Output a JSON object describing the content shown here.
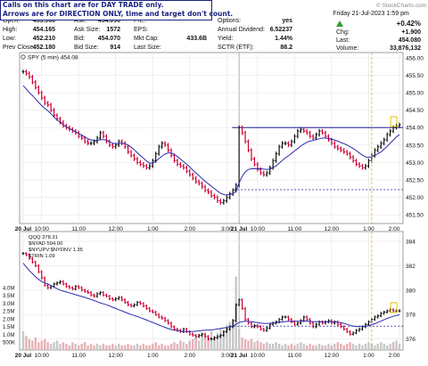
{
  "disclaimer": {
    "line1": "Calls on this chart are for DAY TRADE only.",
    "line2": "Arrows are for DIRECTION ONLY, time and target don't count."
  },
  "watermark": "© StockCharts.com",
  "datetime": "Friday  21-Jul-2023  1:59 pm",
  "quote": [
    {
      "label": "Open:",
      "value": "453.960"
    },
    {
      "label": "Ask:",
      "value": "454.090"
    },
    {
      "label": "P/E:",
      "value": ""
    },
    {
      "label": "Options:",
      "value": "yes"
    },
    {
      "label": "High:",
      "value": "454.165"
    },
    {
      "label": "Ask Size:",
      "value": "1572"
    },
    {
      "label": "EPS:",
      "value": ""
    },
    {
      "label": "Annual Dividend:",
      "value": "6.52237"
    },
    {
      "label": "Low:",
      "value": "452.210"
    },
    {
      "label": "Bid:",
      "value": "454.070"
    },
    {
      "label": "Mkt Cap:",
      "value": "433.6B"
    },
    {
      "label": "Yield:",
      "value": "1.44%"
    },
    {
      "label": "Prev Close:",
      "value": "452.180"
    },
    {
      "label": "Bid Size:",
      "value": "914"
    },
    {
      "label": "Last Size:",
      "value": ""
    },
    {
      "label": "SCTR (ETF):",
      "value": "88.2"
    }
  ],
  "right_stats": {
    "change_pct": "+0.42%",
    "chg_label": "Chg:",
    "chg_value": "+1.900",
    "last_label": "Last:",
    "last_value": "454.080",
    "volume_label": "Volume:",
    "volume_value": "33,876,132"
  },
  "colors": {
    "up": "#111111",
    "down": "#cc0033",
    "ma": "#2b2bb0",
    "volume": "#cccccc",
    "level_line": "#1c1c9c",
    "marker": "#f5a623",
    "arrow": "#2e9e2e",
    "note_text": "#1a237e"
  },
  "chart_data": [
    {
      "type": "line",
      "legend": "SPY (5 min) 454.08",
      "y_ticks": [
        "456.00",
        "455.50",
        "455.00",
        "454.50",
        "454.00",
        "453.50",
        "453.00",
        "452.50",
        "452.00",
        "451.50"
      ],
      "ylim": [
        451.25,
        456.15
      ],
      "x_ticks": [
        "20 Jul",
        "10:00",
        "11:00",
        "12:00",
        "1:00",
        "2:00",
        "3:00",
        "21 Jul",
        "10:00",
        "11:00",
        "12:00",
        "1:00",
        "2:00"
      ],
      "price": [
        455.6,
        455.55,
        455.45,
        455.3,
        455.15,
        455.0,
        454.85,
        454.7,
        454.65,
        454.5,
        454.35,
        454.25,
        454.15,
        454.05,
        454.0,
        453.95,
        453.9,
        453.85,
        453.75,
        453.7,
        453.6,
        453.55,
        453.55,
        453.6,
        453.7,
        453.85,
        453.75,
        453.6,
        453.5,
        453.45,
        453.5,
        453.6,
        453.55,
        453.45,
        453.3,
        453.2,
        453.1,
        453.0,
        452.95,
        452.9,
        452.85,
        452.9,
        453.05,
        453.25,
        453.45,
        453.55,
        453.5,
        453.35,
        453.2,
        453.05,
        452.95,
        452.9,
        452.85,
        452.75,
        452.65,
        452.55,
        452.45,
        452.4,
        452.3,
        452.2,
        452.15,
        452.05,
        452.0,
        451.9,
        451.85,
        451.9,
        452.0,
        452.1,
        452.2,
        452.35,
        454.0,
        453.85,
        453.6,
        453.35,
        453.1,
        452.95,
        452.8,
        452.7,
        452.65,
        452.7,
        452.85,
        453.05,
        453.25,
        453.45,
        453.55,
        453.55,
        453.5,
        453.6,
        453.75,
        453.9,
        453.95,
        453.9,
        453.85,
        453.75,
        453.7,
        453.8,
        453.9,
        453.85,
        453.75,
        453.65,
        453.55,
        453.45,
        453.4,
        453.35,
        453.3,
        453.25,
        453.15,
        453.05,
        452.95,
        452.9,
        452.85,
        452.9,
        453.05,
        453.2,
        453.35,
        453.45,
        453.55,
        453.65,
        453.8,
        453.9,
        454.0,
        454.05,
        454.08
      ],
      "ma": [
        455.2,
        455.1,
        455.0,
        454.92,
        454.82,
        454.72,
        454.63,
        454.55,
        454.48,
        454.4,
        454.3,
        454.22,
        454.15,
        454.08,
        454.02,
        453.97,
        453.93,
        453.88,
        453.83,
        453.78,
        453.73,
        453.68,
        453.65,
        453.63,
        453.63,
        453.65,
        453.66,
        453.64,
        453.6,
        453.55,
        453.54,
        453.55,
        453.55,
        453.54,
        453.5,
        453.44,
        453.36,
        453.28,
        453.2,
        453.12,
        453.04,
        452.98,
        452.98,
        453.03,
        453.11,
        453.18,
        453.24,
        453.27,
        453.27,
        453.23,
        453.17,
        453.1,
        453.02,
        452.95,
        452.87,
        452.78,
        452.7,
        452.62,
        452.54,
        452.46,
        452.39,
        452.32,
        452.25,
        452.18,
        452.12,
        452.08,
        452.07,
        452.08,
        452.11,
        452.17,
        452.41,
        452.6,
        452.73,
        452.8,
        452.82,
        452.82,
        452.82,
        452.82,
        452.81,
        452.8,
        452.81,
        452.85,
        452.9,
        452.98,
        453.06,
        453.13,
        453.19,
        453.26,
        453.33,
        453.4,
        453.47,
        453.53,
        453.58,
        453.61,
        453.63,
        453.66,
        453.68,
        453.7,
        453.7,
        453.69,
        453.67,
        453.64,
        453.61,
        453.57,
        453.54,
        453.5,
        453.45,
        453.4,
        453.34,
        453.27,
        453.21,
        453.16,
        453.15,
        453.16,
        453.2,
        453.25,
        453.3,
        453.38,
        453.46,
        453.55,
        453.64,
        453.73,
        453.8
      ],
      "level_solid": 454.0,
      "level_dashed": 452.22
    },
    {
      "type": "line",
      "legend": [
        "QQQ 378.31",
        "$NYAD 594.00",
        "$NYUPV:$NYDNV 1.35",
        "$TRIN 1.09"
      ],
      "y_ticks": [
        "384",
        "382",
        "380",
        "378",
        "376"
      ],
      "ylim": [
        375.1,
        384.8
      ],
      "volume_ticks": [
        "4.0M",
        "3.5M",
        "3.0M",
        "2.5M",
        "2.0M",
        "1.5M",
        "1.0M",
        "500K"
      ],
      "volume_max": 4.7,
      "x_ticks": [
        "20 Jul",
        "10:00",
        "11:00",
        "12:00",
        "1:00",
        "2:00",
        "3:00",
        "21 Jul",
        "10:00",
        "11:00",
        "12:00",
        "1:00",
        "2:00"
      ],
      "price": [
        383.0,
        382.9,
        382.6,
        382.3,
        382.0,
        381.5,
        381.0,
        380.4,
        380.2,
        380.3,
        380.5,
        380.6,
        380.7,
        380.5,
        380.3,
        380.2,
        380.1,
        380.3,
        380.2,
        380.0,
        379.9,
        379.8,
        379.6,
        379.5,
        379.7,
        379.8,
        379.6,
        379.5,
        379.3,
        379.2,
        379.3,
        379.4,
        379.2,
        379.0,
        378.8,
        378.7,
        378.8,
        379.0,
        378.9,
        378.7,
        378.5,
        378.3,
        378.2,
        378.0,
        377.8,
        377.7,
        377.5,
        377.3,
        377.0,
        376.8,
        376.7,
        376.6,
        376.8,
        376.6,
        376.4,
        376.3,
        376.2,
        376.3,
        376.4,
        376.2,
        376.0,
        376.0,
        376.1,
        376.2,
        376.3,
        376.6,
        376.8,
        377.0,
        377.5,
        378.8,
        379.2,
        378.5,
        377.6,
        377.3,
        377.0,
        377.1,
        377.0,
        376.8,
        376.7,
        376.9,
        377.2,
        377.3,
        377.4,
        377.6,
        377.8,
        377.8,
        377.6,
        377.4,
        377.2,
        377.3,
        377.5,
        377.8,
        377.6,
        377.3,
        377.0,
        377.2,
        377.4,
        377.3,
        377.4,
        377.5,
        377.3,
        377.4,
        377.2,
        377.0,
        376.8,
        376.6,
        376.4,
        376.5,
        376.7,
        376.8,
        377.0,
        377.2,
        377.4,
        377.6,
        377.8,
        377.9,
        378.1,
        378.2,
        378.3,
        378.4,
        378.3,
        378.3,
        378.31
      ],
      "ma": [
        382.2,
        381.9,
        381.6,
        381.35,
        381.1,
        380.88,
        380.7,
        380.6,
        380.5,
        380.38,
        380.25,
        380.12,
        380.0,
        379.92,
        379.85,
        379.78,
        379.7,
        379.62,
        379.55,
        379.48,
        379.4,
        379.32,
        379.24,
        379.15,
        379.05,
        378.96,
        378.88,
        378.8,
        378.7,
        378.6,
        378.5,
        378.4,
        378.3,
        378.2,
        378.1,
        378.0,
        377.92,
        377.84,
        377.75,
        377.65,
        377.55,
        377.45,
        377.35,
        377.25,
        377.15,
        377.05,
        376.95,
        376.86,
        376.78,
        376.72,
        376.68,
        376.65,
        376.62,
        376.6,
        376.6,
        376.62,
        376.64,
        376.66,
        376.7,
        376.72,
        376.72,
        376.74,
        376.78,
        376.82,
        376.86,
        376.9,
        376.95,
        377.0,
        377.05,
        377.2,
        377.35,
        377.42,
        377.45,
        377.45,
        377.42,
        377.38,
        377.34,
        377.3,
        377.27,
        377.27,
        377.29,
        377.32,
        377.34,
        377.37,
        377.4,
        377.43,
        377.44,
        377.45,
        377.45,
        377.45,
        377.46,
        377.47,
        377.47,
        377.45,
        377.43,
        377.42,
        377.42,
        377.42,
        377.42,
        377.42,
        377.41,
        377.4,
        377.38,
        377.34,
        377.28,
        377.2,
        377.12,
        377.06,
        377.02,
        377.01,
        377.02,
        377.05,
        377.1,
        377.17,
        377.25,
        377.35,
        377.46,
        377.57,
        377.68,
        377.78,
        377.86,
        377.93,
        377.98
      ],
      "volume": [
        1.2,
        0.9,
        0.7,
        0.6,
        0.8,
        0.5,
        0.6,
        0.7,
        0.5,
        0.4,
        0.5,
        0.6,
        0.4,
        0.5,
        0.4,
        0.3,
        0.5,
        0.4,
        0.3,
        0.4,
        0.5,
        0.3,
        0.4,
        0.3,
        0.4,
        0.3,
        0.4,
        0.3,
        0.3,
        0.4,
        0.3,
        0.4,
        0.3,
        0.3,
        0.4,
        0.3,
        0.3,
        0.4,
        0.3,
        0.4,
        0.3,
        0.3,
        0.4,
        0.5,
        0.3,
        0.4,
        0.3,
        0.3,
        0.4,
        0.5,
        0.4,
        0.6,
        0.5,
        0.4,
        0.6,
        0.7,
        0.8,
        0.6,
        0.9,
        1.0,
        0.8,
        1.2,
        0.9,
        1.1,
        1.4,
        1.2,
        1.6,
        1.8,
        2.0,
        4.7,
        1.3,
        0.8,
        0.7,
        0.6,
        0.7,
        0.5,
        0.6,
        0.5,
        0.4,
        0.5,
        0.4,
        0.4,
        0.5,
        0.4,
        0.3,
        0.4,
        0.3,
        0.4,
        0.3,
        0.4,
        0.5,
        0.4,
        0.3,
        0.4,
        0.3,
        0.3,
        0.4,
        0.3,
        0.3,
        0.4,
        0.3,
        0.4,
        0.5,
        0.4,
        0.3,
        0.4,
        0.5,
        0.4,
        0.3,
        0.4,
        0.3,
        0.4,
        0.5,
        0.4,
        0.3,
        0.4,
        0.5,
        0.4,
        0.3,
        0.4,
        0.5,
        0.6,
        0.4
      ],
      "level_dashed": 377.05
    }
  ]
}
